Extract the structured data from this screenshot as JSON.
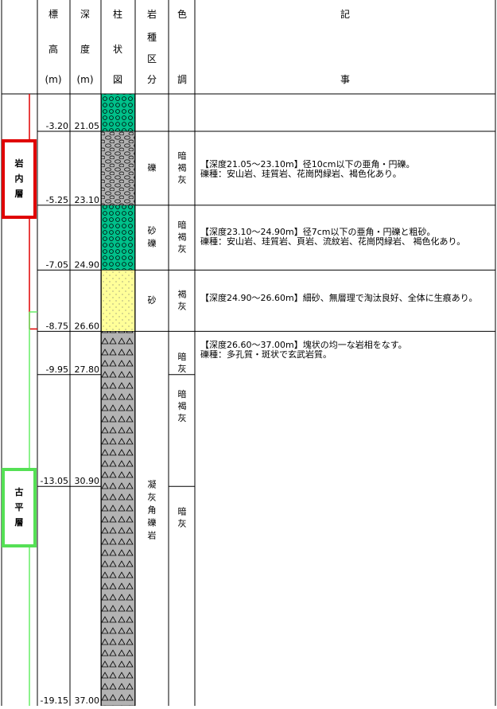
{
  "header": {
    "elevation": [
      "標",
      "高",
      "(m)"
    ],
    "depth": [
      "深",
      "度",
      "(m)"
    ],
    "column": [
      "柱",
      "状",
      "図"
    ],
    "rock_type": [
      "岩",
      "種",
      "区",
      "分"
    ],
    "color": [
      "色",
      "調"
    ],
    "notes": [
      "記",
      "事"
    ]
  },
  "layers": [
    {
      "elevation": "-3.20",
      "depth": "21.05"
    },
    {
      "elevation": "-5.25",
      "depth": "23.10"
    },
    {
      "elevation": "-7.05",
      "depth": "24.90"
    },
    {
      "elevation": "-8.75",
      "depth": "26.60"
    },
    {
      "elevation": "-9.95",
      "depth": "27.80"
    },
    {
      "elevation": "-13.05",
      "depth": "30.90"
    },
    {
      "elevation": "-19.15",
      "depth": "37.00"
    }
  ],
  "rock_types": [
    "礫",
    "砂礫",
    "砂",
    "凝灰角礫岩"
  ],
  "color_tones": [
    "暗褐灰",
    "暗褐灰",
    "褐灰",
    "暗灰",
    "暗褐灰",
    "暗灰"
  ],
  "notes": [
    [
      "【深度21.05～23.10m】径10cm以下の亜角・円礫。",
      "礫種：安山岩、珪質岩、花崗閃緑岩、褐色化あり。"
    ],
    [
      "【深度23.10～24.90m】径7cm以下の亜角・円礫と粗砂。",
      "礫種：安山岩、珪質岩、頁岩、流紋岩、花崗閃緑岩、 褐色化あり。"
    ],
    [
      "【深度24.90～26.60m】細砂、無層理で淘汰良好、全体に生痕あり。"
    ],
    [
      "【深度26.60～37.00m】塊状の均一な岩相をなす。",
      "礫種：多孔質・斑状で玄武岩質。"
    ]
  ],
  "formations": [
    "岩内層",
    "古平層"
  ]
}
